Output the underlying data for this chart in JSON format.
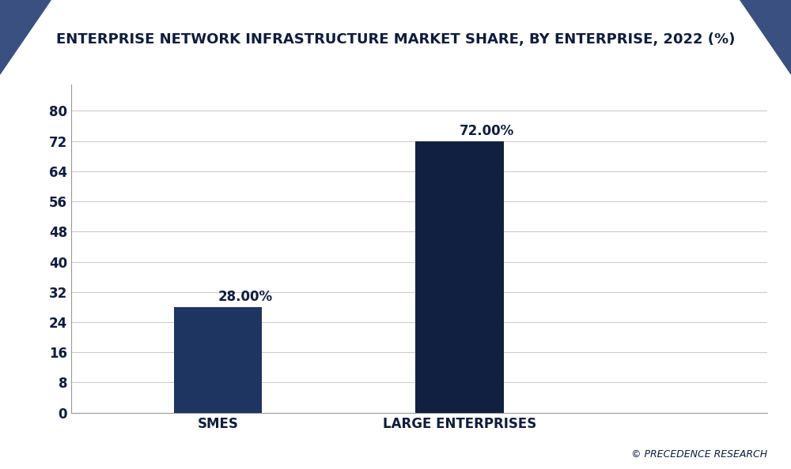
{
  "title": "ENTERPRISE NETWORK INFRASTRUCTURE MARKET SHARE, BY ENTERPRISE, 2022 (%)",
  "categories": [
    "SMES",
    "LARGE ENTERPRISES"
  ],
  "values": [
    28.0,
    72.0
  ],
  "labels": [
    "28.00%",
    "72.00%"
  ],
  "bar_colors": [
    "#1e3461",
    "#111f40"
  ],
  "background_color": "#ffffff",
  "plot_bg_color": "#ffffff",
  "title_color": "#0f1d3c",
  "tick_color": "#0f1d3c",
  "yticks": [
    0,
    8,
    16,
    24,
    32,
    40,
    48,
    56,
    64,
    72,
    80
  ],
  "ylim": [
    0,
    87
  ],
  "watermark": "© PRECEDENCE RESEARCH",
  "title_fontsize": 13,
  "tick_fontsize": 12,
  "label_fontsize": 12,
  "bar_width": 0.12,
  "x_positions": [
    0.25,
    0.58
  ],
  "xlim": [
    0.05,
    1.0
  ],
  "corner_color": "#3a5080",
  "header_bg_color": "#ffffff",
  "title_area_color": "#f5f7fa"
}
